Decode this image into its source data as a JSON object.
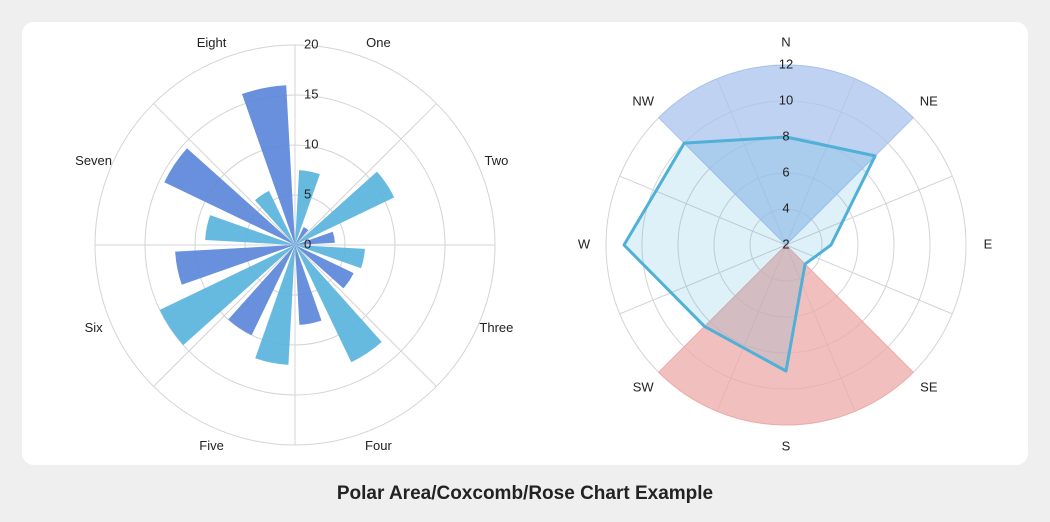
{
  "chart_data": [
    {
      "type": "polarArea",
      "categories": [
        "One",
        "Two",
        "Three",
        "Four",
        "Five",
        "Six",
        "Seven",
        "Eight"
      ],
      "series": [
        {
          "color": "#5ab4dc",
          "values": [
            7.5,
            11,
            7,
            13,
            12,
            15,
            9,
            6
          ]
        },
        {
          "color": "#5b87d9",
          "values": [
            2,
            4,
            6.5,
            8,
            10,
            12,
            14.5,
            16
          ]
        }
      ],
      "rlim": [
        0,
        20
      ],
      "rticks": [
        0,
        5,
        10,
        15,
        20
      ],
      "grid": true
    },
    {
      "type": "radar",
      "categories": [
        "N",
        "NE",
        "E",
        "SE",
        "S",
        "SW",
        "W",
        "NW"
      ],
      "series": [
        {
          "kind": "wedge",
          "color": "#a9c3ee",
          "values": [
            12,
            null,
            null,
            null,
            null,
            null,
            null,
            null
          ]
        },
        {
          "kind": "wedge",
          "color": "#eeaaaa",
          "values": [
            null,
            null,
            null,
            null,
            12,
            null,
            null,
            null
          ]
        },
        {
          "kind": "line",
          "color": "#4fb0d8",
          "values": [
            8,
            9,
            4.5,
            3.5,
            9,
            8.4,
            11,
            10
          ]
        }
      ],
      "rlim": [
        2,
        12
      ],
      "rticks": [
        2,
        4,
        6,
        8,
        10,
        12
      ],
      "grid": true
    }
  ],
  "caption": "Polar Area/Coxcomb/Rose Chart Example"
}
